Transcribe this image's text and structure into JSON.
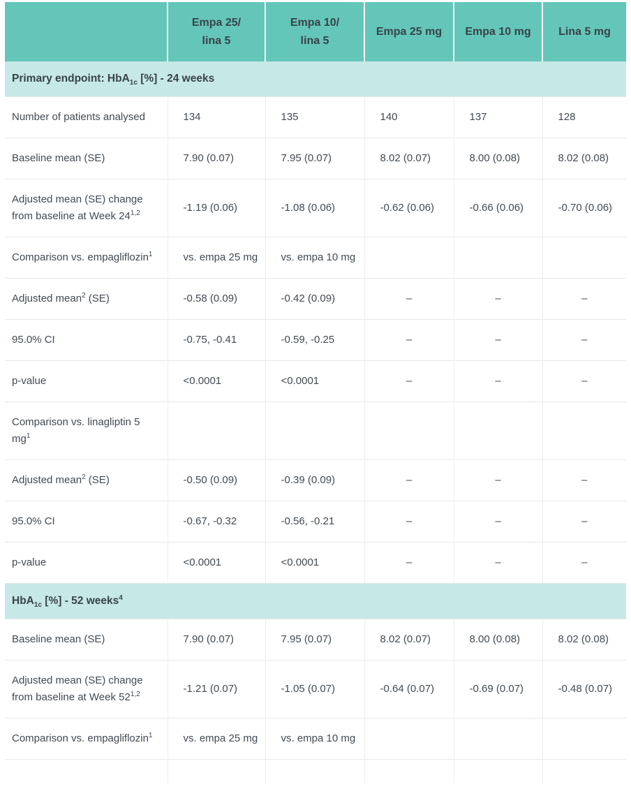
{
  "colors": {
    "header_teal": "#63c6b8",
    "section_band_teal": "#c6e8e6",
    "heading_text": "#39424a",
    "body_text": "#414a52",
    "horizontal_gridline": "#e6e8e9",
    "vertical_gridline": "#eceeef",
    "header_divider": "#ffffff",
    "background": "#ffffff"
  },
  "table": {
    "columns": [
      {
        "label": ""
      },
      {
        "label": "Empa 25/\nlina 5"
      },
      {
        "label": "Empa 10/\nlina 5"
      },
      {
        "label": "Empa 25 mg"
      },
      {
        "label": "Empa 10 mg"
      },
      {
        "label": "Lina 5 mg"
      }
    ],
    "empty_cell_dash": "–",
    "rows": [
      {
        "type": "section",
        "label": "Primary endpoint: HbA_{1c} [%] - 24 weeks"
      },
      {
        "type": "data",
        "label": "Number of patients analysed",
        "cells": [
          "134",
          "135",
          "140",
          "137",
          "128"
        ]
      },
      {
        "type": "data",
        "label": "Baseline mean (SE)",
        "cells": [
          "7.90 (0.07)",
          "7.95 (0.07)",
          "8.02 (0.07)",
          "8.00 (0.08)",
          "8.02 (0.08)"
        ]
      },
      {
        "type": "data",
        "label": "Adjusted mean (SE) change from baseline at Week 24^{1,2}",
        "cells": [
          "-1.19 (0.06)",
          "-1.08 (0.06)",
          "-0.62 (0.06)",
          "-0.66 (0.06)",
          "-0.70 (0.06)"
        ]
      },
      {
        "type": "data",
        "label": "Comparison vs. empagliflozin^{1}",
        "cells": [
          "vs. empa 25 mg",
          "vs. empa 10 mg",
          "",
          "",
          ""
        ]
      },
      {
        "type": "data",
        "label": "Adjusted mean^{2} (SE)",
        "cells": [
          "-0.58 (0.09)",
          "-0.42 (0.09)",
          "–",
          "–",
          "–"
        ]
      },
      {
        "type": "data",
        "label": "95.0% CI",
        "cells": [
          "-0.75, -0.41",
          "-0.59, -0.25",
          "–",
          "–",
          "–"
        ]
      },
      {
        "type": "data",
        "label": "p-value",
        "cells": [
          "<0.0001",
          "<0.0001",
          "–",
          "–",
          "–"
        ]
      },
      {
        "type": "data",
        "label": "Comparison vs. linagliptin 5 mg^{1}",
        "cells": [
          "",
          "",
          "",
          "",
          ""
        ]
      },
      {
        "type": "data",
        "label": "Adjusted mean^{2} (SE)",
        "cells": [
          "-0.50 (0.09)",
          "-0.39 (0.09)",
          "–",
          "–",
          "–"
        ]
      },
      {
        "type": "data",
        "label": "95.0% CI",
        "cells": [
          "-0.67, -0.32",
          "-0.56, -0.21",
          "–",
          "–",
          "–"
        ]
      },
      {
        "type": "data",
        "label": "p-value",
        "cells": [
          "<0.0001",
          "<0.0001",
          "–",
          "–",
          "–"
        ]
      },
      {
        "type": "section",
        "label": "HbA_{1c} [%] - 52 weeks^{4}"
      },
      {
        "type": "data",
        "label": "Baseline mean (SE)",
        "cells": [
          "7.90 (0.07)",
          "7.95 (0.07)",
          "8.02 (0.07)",
          "8.00 (0.08)",
          "8.02 (0.08)"
        ]
      },
      {
        "type": "data",
        "label": "Adjusted mean (SE) change from baseline at Week 52^{1,2}",
        "cells": [
          "-1.21 (0.07)",
          "-1.05 (0.07)",
          "-0.64 (0.07)",
          "-0.69 (0.07)",
          "-0.48 (0.07)"
        ]
      },
      {
        "type": "data",
        "label": "Comparison vs. empagliflozin^{1}",
        "cells": [
          "vs. empa 25 mg",
          "vs. empa 10 mg",
          "",
          "",
          ""
        ]
      },
      {
        "type": "data",
        "label": "",
        "cells": [
          "",
          "",
          "",
          "",
          ""
        ]
      }
    ]
  }
}
